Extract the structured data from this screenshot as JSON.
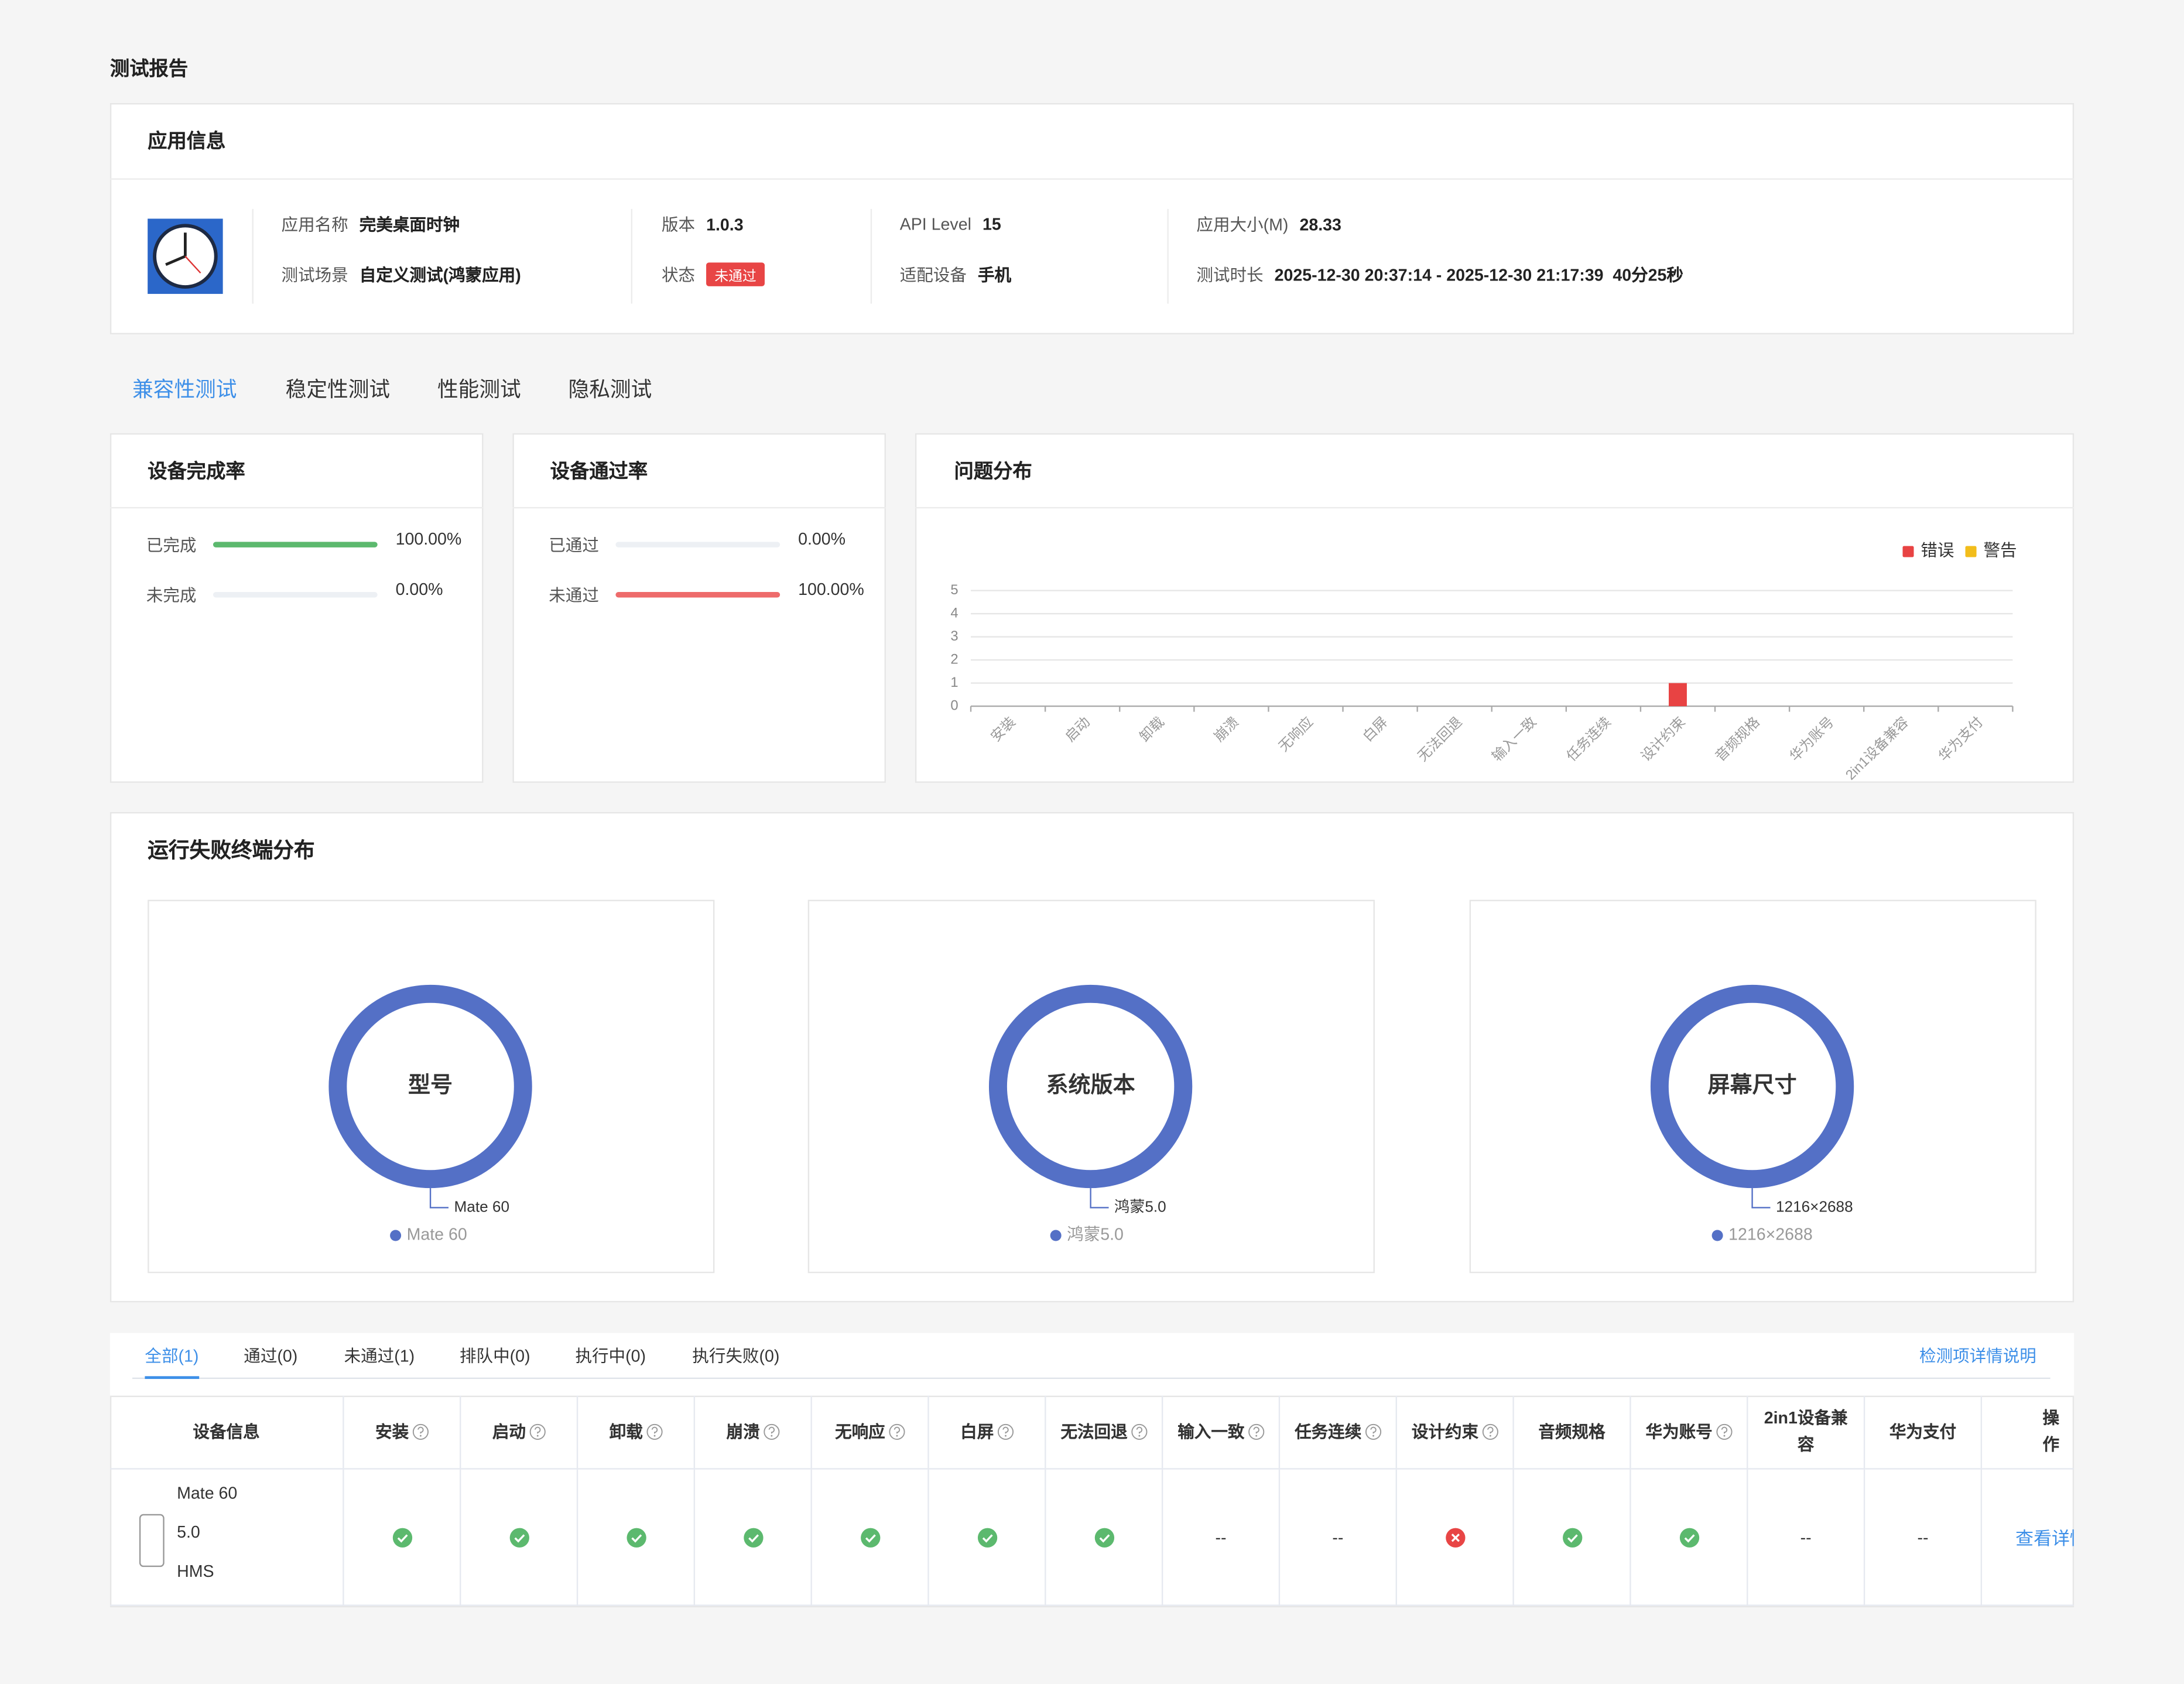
{
  "page_title": "测试报告",
  "app_info": {
    "title": "应用信息",
    "fields": [
      {
        "label": "应用名称",
        "value": "完美桌面时钟"
      },
      {
        "label": "测试场景",
        "value": "自定义测试(鸿蒙应用)"
      },
      {
        "label": "版本",
        "value": "1.0.3"
      },
      {
        "label": "状态",
        "value": "未通过"
      },
      {
        "label": "API Level",
        "value": "15"
      },
      {
        "label": "适配设备",
        "value": "手机"
      },
      {
        "label": "应用大小(M)",
        "value": "28.33"
      },
      {
        "label": "测试时长",
        "value": "2025-12-30 20:37:14 - 2025-12-30 21:17:39  40分25秒"
      }
    ]
  },
  "tabs": [
    "兼容性测试",
    "稳定性测试",
    "性能测试",
    "隐私测试"
  ],
  "active_tab": 0,
  "completion": {
    "title": "设备完成率",
    "color": "#5cb96e",
    "rows": [
      {
        "label": "已完成",
        "value": 100,
        "value_label": "100.00%"
      },
      {
        "label": "未完成",
        "value": 0,
        "value_label": "0.00%"
      }
    ]
  },
  "pass_rate": {
    "title": "设备通过率",
    "color": "#ee6b6b",
    "rows": [
      {
        "label": "已通过",
        "value": 0,
        "value_label": "0.00%"
      },
      {
        "label": "未通过",
        "value": 100,
        "value_label": "100.00%"
      }
    ]
  },
  "chart_data": {
    "type": "bar",
    "title": "问题分布",
    "categories": [
      "安装",
      "启动",
      "卸载",
      "崩溃",
      "无响应",
      "白屏",
      "无法回退",
      "输入一致",
      "任务连续",
      "设计约束",
      "音频规格",
      "华为账号",
      "2in1设备兼容",
      "华为支付"
    ],
    "series": [
      {
        "name": "错误",
        "color": "#e84343",
        "values": [
          0,
          0,
          0,
          0,
          0,
          0,
          0,
          0,
          0,
          1,
          0,
          0,
          0,
          0
        ]
      },
      {
        "name": "警告",
        "color": "#f2bd1b",
        "values": [
          0,
          0,
          0,
          0,
          0,
          0,
          0,
          0,
          0,
          0,
          0,
          0,
          0,
          0
        ]
      }
    ],
    "ylim": [
      0,
      5
    ],
    "yticks": [
      0,
      1,
      2,
      3,
      4,
      5
    ],
    "grid": true,
    "legend": "top-right"
  },
  "failure_distribution": {
    "title": "运行失败终端分布",
    "charts": [
      {
        "type": "pie",
        "title": "型号",
        "categories": [
          "Mate 60"
        ],
        "values": [
          1
        ],
        "color": "#5470c6"
      },
      {
        "type": "pie",
        "title": "系统版本",
        "categories": [
          "鸿蒙5.0"
        ],
        "values": [
          1
        ],
        "color": "#5470c6"
      },
      {
        "type": "pie",
        "title": "屏幕尺寸",
        "categories": [
          "1216×2688"
        ],
        "values": [
          1
        ],
        "color": "#5470c6"
      }
    ]
  },
  "results": {
    "filters": [
      "全部(1)",
      "通过(0)",
      "未通过(1)",
      "排队中(0)",
      "执行中(0)",
      "执行失败(0)"
    ],
    "active_filter": 0,
    "link": "检测项详情说明",
    "columns": [
      {
        "label": "设备信息",
        "help": false
      },
      {
        "label": "安装",
        "help": true
      },
      {
        "label": "启动",
        "help": true
      },
      {
        "label": "卸载",
        "help": true
      },
      {
        "label": "崩溃",
        "help": true
      },
      {
        "label": "无响应",
        "help": true
      },
      {
        "label": "白屏",
        "help": true
      },
      {
        "label": "无法回退",
        "help": true
      },
      {
        "label": "输入一致",
        "help": true
      },
      {
        "label": "任务连续",
        "help": true
      },
      {
        "label": "设计约束",
        "help": true
      },
      {
        "label": "音频规格",
        "help": false
      },
      {
        "label": "华为账号",
        "help": true
      },
      {
        "label": "2in1设备兼容",
        "help": false
      },
      {
        "label": "华为支付",
        "help": false
      },
      {
        "label": "操作",
        "help": false
      }
    ],
    "rows": [
      {
        "device": [
          "Mate 60",
          "5.0",
          "HMS"
        ],
        "cells": [
          "ok",
          "ok",
          "ok",
          "ok",
          "ok",
          "ok",
          "ok",
          "--",
          "--",
          "error",
          "ok",
          "ok",
          "--",
          "--"
        ],
        "action": "查看详情"
      }
    ]
  }
}
